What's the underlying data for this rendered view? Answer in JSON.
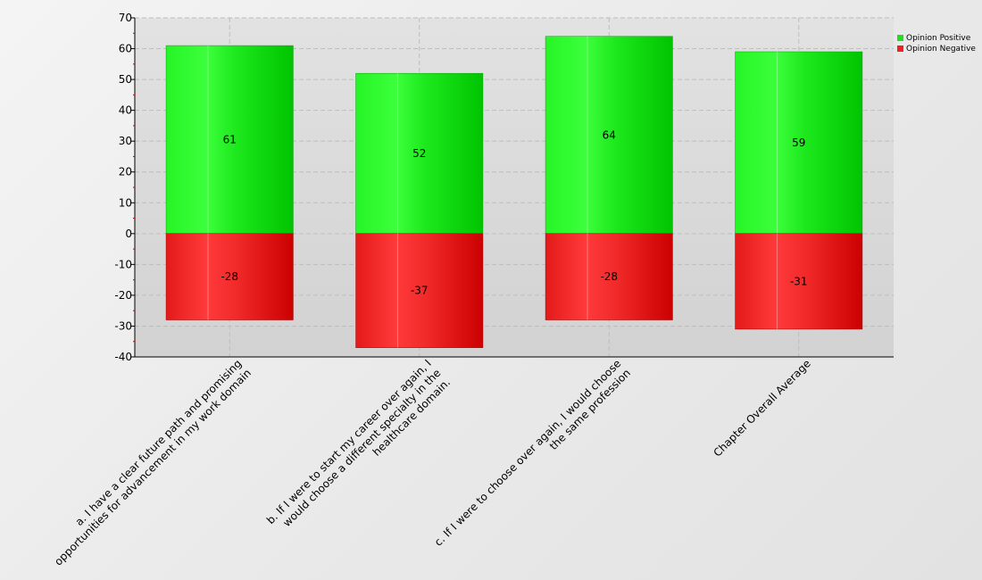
{
  "chart_data": {
    "type": "bar",
    "stacked": true,
    "categories": [
      [
        "a. I have a clear future path and promising",
        "opportunities for advancement in my work domain"
      ],
      [
        "b. If I were to start my career over again, I",
        "would choose a different specialty in the",
        "healthcare domain."
      ],
      [
        "c. If I were to choose over again, I would choose",
        "the same profession"
      ],
      [
        "Chapter Overall Average"
      ]
    ],
    "series": [
      {
        "name": "Opinion Positive",
        "values": [
          61,
          52,
          64,
          59
        ],
        "color": "#22dd22"
      },
      {
        "name": "Opinion Negative",
        "values": [
          -28,
          -37,
          -28,
          -31
        ],
        "color": "#ee2222"
      }
    ],
    "ylim": [
      -40,
      70
    ],
    "yticks": [
      -40,
      -30,
      -20,
      -10,
      0,
      10,
      20,
      30,
      40,
      50,
      60,
      70
    ],
    "grid": true,
    "legend_position": "top-right"
  }
}
